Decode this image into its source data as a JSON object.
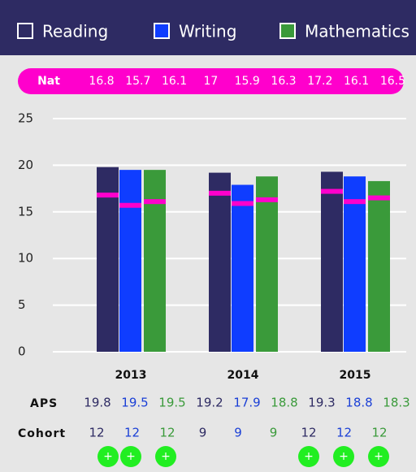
{
  "chart_data": {
    "type": "bar",
    "categories": [
      "2013",
      "2014",
      "2015"
    ],
    "series": [
      {
        "name": "Reading",
        "color": "#2e2b63",
        "text_color": "#2e2b63",
        "values": [
          19.8,
          19.2,
          19.3
        ],
        "nat": [
          16.8,
          17.0,
          17.2
        ],
        "cohort": [
          12,
          9,
          12
        ],
        "expandable": [
          true,
          false,
          true
        ]
      },
      {
        "name": "Writing",
        "color": "#0f3dff",
        "text_color": "#1a3fd6",
        "values": [
          19.5,
          17.9,
          18.8
        ],
        "nat": [
          15.7,
          15.9,
          16.1
        ],
        "cohort": [
          12,
          9,
          12
        ],
        "expandable": [
          true,
          false,
          true
        ]
      },
      {
        "name": "Mathematics",
        "color": "#3a9a3a",
        "text_color": "#3a9a3a",
        "values": [
          19.5,
          18.8,
          18.3
        ],
        "nat": [
          16.1,
          16.3,
          16.5
        ],
        "cohort": [
          12,
          9,
          12
        ],
        "expandable": [
          true,
          false,
          true
        ]
      }
    ],
    "nat_label": "Nat",
    "aps_label": "APS",
    "cohort_label": "Cohort",
    "expand_label": "+",
    "nat_color": "#ff00cc",
    "ylim": [
      0,
      25
    ],
    "yticks": [
      0,
      5,
      10,
      15,
      20,
      25
    ],
    "grid": true
  }
}
